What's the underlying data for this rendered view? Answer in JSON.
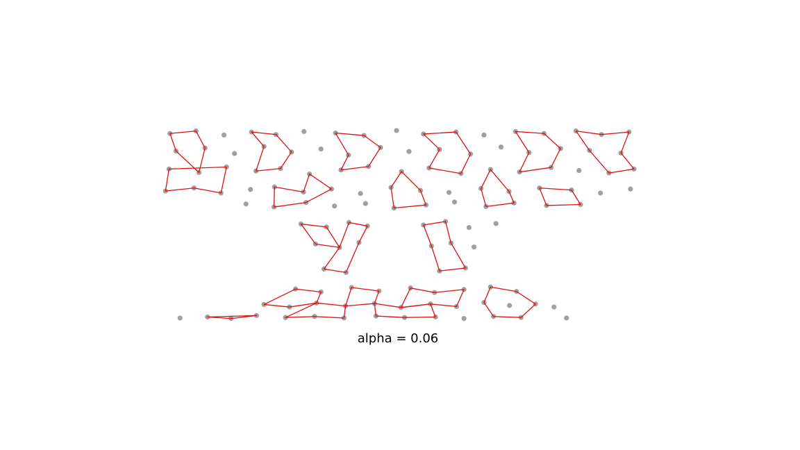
{
  "chart_data": {
    "type": "scatter",
    "title": "alpha = 0.06",
    "xlim": [
      0,
      16
    ],
    "ylim": [
      0,
      9
    ],
    "color": "#a0a0a0",
    "polygon_color": "#dd1111",
    "x": [
      3.4,
      3.92,
      4.48,
      5.03,
      5.52,
      6.08,
      6.71,
      7.28,
      7.93,
      8.47,
      9.12,
      9.68,
      10.31,
      10.88,
      11.52,
      12.03,
      12.58,
      3.52,
      4.1,
      4.69,
      5.28,
      5.83,
      6.42,
      6.97,
      7.61,
      8.18,
      8.79,
      9.41,
      10.02,
      10.58,
      11.21,
      11.79,
      12.42,
      3.38,
      3.98,
      4.53,
      5.12,
      5.61,
      6.19,
      6.82,
      7.37,
      8.03,
      8.58,
      9.22,
      9.81,
      10.39,
      11.02,
      11.58,
      12.18,
      12.68,
      3.31,
      3.88,
      4.42,
      5.01,
      5.49,
      6.07,
      6.63,
      7.21,
      7.82,
      8.41,
      8.98,
      9.62,
      10.18,
      10.79,
      11.43,
      12.01,
      12.61,
      4.92,
      5.48,
      6.12,
      6.69,
      7.31,
      7.88,
      8.52,
      9.09,
      9.72,
      10.28,
      10.93,
      11.61,
      6.02,
      6.53,
      6.98,
      7.35,
      8.47,
      8.91,
      9.38,
      9.92,
      6.31,
      6.79,
      7.18,
      8.63,
      9.02,
      9.48,
      6.48,
      6.92,
      8.79,
      9.31,
      5.91,
      6.42,
      7.03,
      7.58,
      8.21,
      8.69,
      9.28,
      9.81,
      10.33,
      5.28,
      5.79,
      6.33,
      6.91,
      7.49,
      8.02,
      8.61,
      9.13,
      9.68,
      10.19,
      10.71,
      11.08,
      3.6,
      4.15,
      4.62,
      5.13,
      5.71,
      6.29,
      6.88,
      7.52,
      8.09,
      8.71,
      9.28,
      9.87,
      10.42,
      11.33
    ],
    "values": [
      6.33,
      6.38,
      6.3,
      6.36,
      6.31,
      6.37,
      6.34,
      6.29,
      6.39,
      6.32,
      6.36,
      6.3,
      6.37,
      6.33,
      6.38,
      6.31,
      6.36,
      5.98,
      6.04,
      5.93,
      6.07,
      5.96,
      6.02,
      5.9,
      6.05,
      5.97,
      6.01,
      5.92,
      6.06,
      5.95,
      6.03,
      5.99,
      5.94,
      5.62,
      5.55,
      5.66,
      5.58,
      5.63,
      5.52,
      5.6,
      5.67,
      5.57,
      5.64,
      5.53,
      5.61,
      5.56,
      5.65,
      5.59,
      5.54,
      5.62,
      5.18,
      5.24,
      5.14,
      5.21,
      5.26,
      5.16,
      5.22,
      5.13,
      5.25,
      5.19,
      5.15,
      5.23,
      5.17,
      5.24,
      5.2,
      5.14,
      5.22,
      4.92,
      4.86,
      4.95,
      4.88,
      4.93,
      4.84,
      4.9,
      4.96,
      4.87,
      4.94,
      4.89,
      4.91,
      4.52,
      4.46,
      4.55,
      4.48,
      4.5,
      4.57,
      4.45,
      4.53,
      4.12,
      4.05,
      4.15,
      4.08,
      4.14,
      4.06,
      3.62,
      3.55,
      3.58,
      3.64,
      3.22,
      3.16,
      3.25,
      3.18,
      3.24,
      3.15,
      3.21,
      3.26,
      3.17,
      2.91,
      2.86,
      2.94,
      2.88,
      2.93,
      2.85,
      2.92,
      2.87,
      2.95,
      2.89,
      2.92,
      2.86,
      2.64,
      2.66,
      2.63,
      2.69,
      2.65,
      2.67,
      2.64,
      2.68,
      2.65,
      2.66,
      2.63,
      2.67,
      2.65,
      2.64
    ],
    "polygons": [
      {
        "x": [
          3.4,
          3.92,
          4.1,
          3.98,
          3.52
        ],
        "y": [
          6.33,
          6.38,
          6.04,
          5.55,
          5.98
        ]
      },
      {
        "x": [
          5.03,
          5.52,
          5.83,
          5.61,
          5.12,
          5.28
        ],
        "y": [
          6.36,
          6.31,
          5.96,
          5.63,
          5.58,
          6.07
        ]
      },
      {
        "x": [
          6.71,
          7.28,
          7.61,
          7.37,
          6.82,
          6.97
        ],
        "y": [
          6.34,
          6.29,
          6.05,
          5.67,
          5.6,
          5.9
        ]
      },
      {
        "x": [
          8.47,
          9.12,
          9.41,
          9.22,
          8.58,
          8.79
        ],
        "y": [
          6.32,
          6.36,
          5.92,
          5.53,
          5.64,
          6.01
        ]
      },
      {
        "x": [
          10.31,
          10.88,
          11.21,
          11.02,
          10.39,
          10.58
        ],
        "y": [
          6.37,
          6.33,
          6.03,
          5.65,
          5.56,
          5.95
        ]
      },
      {
        "x": [
          11.52,
          12.03,
          12.58,
          12.42,
          12.68,
          12.18,
          11.79
        ],
        "y": [
          6.38,
          6.31,
          6.36,
          5.94,
          5.62,
          5.54,
          5.99
        ]
      },
      {
        "x": [
          3.38,
          4.53,
          4.42,
          3.88,
          3.31
        ],
        "y": [
          5.62,
          5.66,
          5.14,
          5.24,
          5.18
        ]
      },
      {
        "x": [
          6.19,
          6.63,
          6.12,
          5.48,
          5.49,
          6.07
        ],
        "y": [
          5.52,
          5.22,
          4.95,
          4.86,
          5.26,
          5.16
        ]
      },
      {
        "x": [
          8.03,
          8.41,
          8.52,
          7.88,
          7.82
        ],
        "y": [
          5.57,
          5.19,
          4.9,
          4.84,
          5.25
        ]
      },
      {
        "x": [
          9.81,
          10.18,
          10.28,
          9.72,
          9.62
        ],
        "y": [
          5.61,
          5.17,
          4.94,
          4.87,
          5.23
        ]
      },
      {
        "x": [
          10.79,
          11.43,
          11.61,
          10.93
        ],
        "y": [
          5.24,
          5.2,
          4.91,
          4.89
        ]
      },
      {
        "x": [
          6.02,
          6.53,
          6.79,
          6.31
        ],
        "y": [
          4.52,
          4.46,
          4.05,
          4.12
        ]
      },
      {
        "x": [
          6.98,
          7.35,
          7.18,
          6.92,
          6.48,
          6.79
        ],
        "y": [
          4.55,
          4.48,
          4.15,
          3.55,
          3.62,
          4.05
        ]
      },
      {
        "x": [
          8.47,
          8.91,
          9.02,
          9.31,
          8.79,
          8.63
        ],
        "y": [
          4.5,
          4.57,
          4.14,
          3.64,
          3.58,
          4.08
        ]
      },
      {
        "x": [
          5.91,
          6.42,
          6.33,
          5.79,
          5.28
        ],
        "y": [
          3.22,
          3.16,
          2.94,
          2.86,
          2.91
        ]
      },
      {
        "x": [
          7.03,
          7.58,
          7.49,
          6.91
        ],
        "y": [
          3.25,
          3.18,
          2.93,
          2.88
        ]
      },
      {
        "x": [
          8.21,
          8.69,
          9.28,
          9.13,
          8.61,
          8.02
        ],
        "y": [
          3.24,
          3.15,
          3.21,
          2.87,
          2.92,
          2.85
        ]
      },
      {
        "x": [
          9.81,
          10.33,
          10.71,
          10.42,
          9.87,
          9.68
        ],
        "y": [
          3.26,
          3.17,
          2.92,
          2.65,
          2.67,
          2.95
        ]
      },
      {
        "x": [
          4.15,
          4.62,
          5.13
        ],
        "y": [
          2.66,
          2.63,
          2.69
        ]
      },
      {
        "x": [
          5.71,
          6.29,
          6.88,
          6.91,
          6.33
        ],
        "y": [
          2.65,
          2.67,
          2.64,
          2.88,
          2.94
        ]
      },
      {
        "x": [
          7.52,
          8.09,
          8.71,
          8.61,
          8.02,
          7.49
        ],
        "y": [
          2.68,
          2.65,
          2.66,
          2.92,
          2.85,
          2.93
        ]
      }
    ]
  }
}
